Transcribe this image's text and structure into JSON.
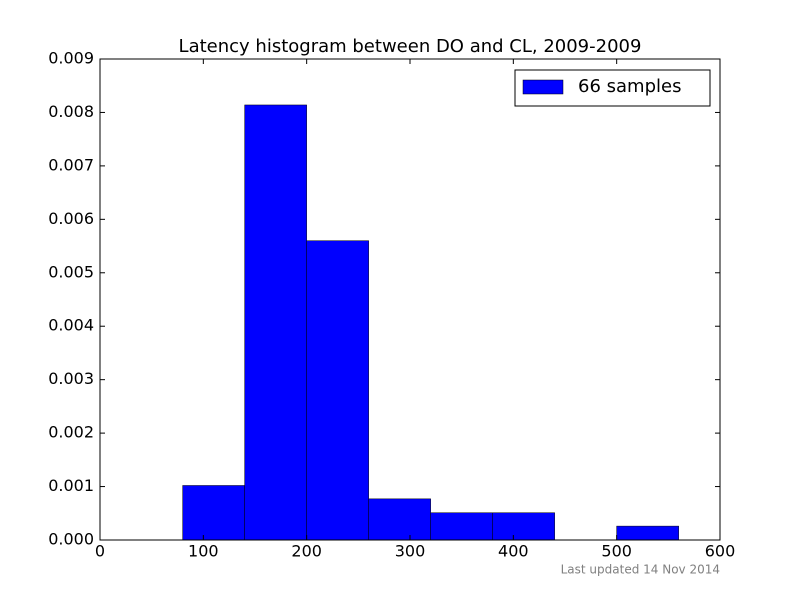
{
  "chart_data": {
    "type": "histogram",
    "title": "Latency histogram between DO and CL, 2009-2009",
    "bins": [
      80,
      140,
      200,
      260,
      320,
      380,
      440,
      500,
      560
    ],
    "series": [
      {
        "name": "66 samples",
        "color": "#0000ff",
        "values": [
          0.00102,
          0.00814,
          0.0056,
          0.00077,
          0.00051,
          0.00051,
          0,
          0.00026
        ]
      }
    ],
    "xlim": [
      0,
      600
    ],
    "xticks": [
      0,
      100,
      200,
      300,
      400,
      500,
      600
    ],
    "ylim": [
      0,
      0.009
    ],
    "yticks": [
      {
        "value": 0,
        "label": "0.000"
      },
      {
        "value": 0.001,
        "label": "0.001"
      },
      {
        "value": 0.002,
        "label": "0.002"
      },
      {
        "value": 0.003,
        "label": "0.003"
      },
      {
        "value": 0.004,
        "label": "0.004"
      },
      {
        "value": 0.005,
        "label": "0.005"
      },
      {
        "value": 0.006,
        "label": "0.006"
      },
      {
        "value": 0.007,
        "label": "0.007"
      },
      {
        "value": 0.008,
        "label": "0.008"
      },
      {
        "value": 0.009,
        "label": "0.009"
      }
    ],
    "legend": "upper right",
    "footnote": "Last updated 14 Nov 2014"
  }
}
